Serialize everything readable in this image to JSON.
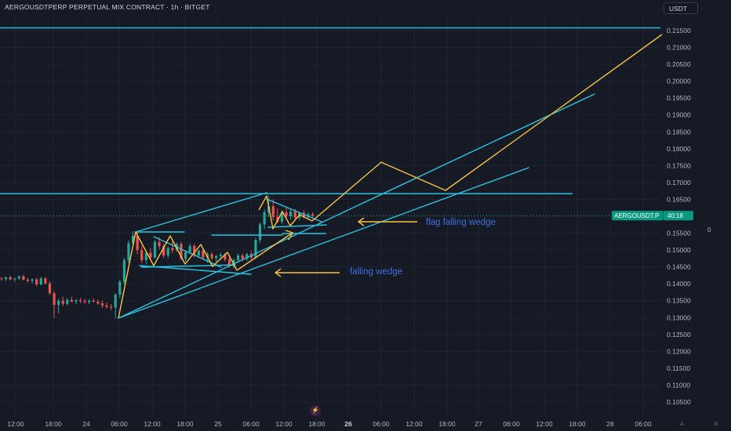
{
  "header": {
    "title": "AERGOUSDTPERP PERPETUAL MIX CONTRACT · 1h · BITGET",
    "currency": "USDT"
  },
  "price_tag": {
    "symbol": "AERGOUSDT.P",
    "countdown": "40:18",
    "color": "#089981"
  },
  "right_scale_extra": "0",
  "icons": {
    "bolt": "lightning-bolt-icon",
    "bolt_glyph": "⚡",
    "corner_a": "A",
    "corner_b": "B"
  },
  "colors": {
    "background": "#161a25",
    "grid": "#1f2330",
    "text": "#b2b5be",
    "cyan": "#29c4e0",
    "orange": "#f5c242",
    "annotation_text": "#3d6fe0",
    "up": "#26a69a",
    "down": "#ef5350"
  },
  "chart_data": {
    "type": "candlestick",
    "title": "AERGOUSDTPERP PERPETUAL MIX CONTRACT · 1h · BITGET",
    "ylim": [
      0.1035,
      0.2175
    ],
    "y_ticks": [
      "0.21500",
      "0.21000",
      "0.20500",
      "0.20000",
      "0.19500",
      "0.19000",
      "0.18500",
      "0.18000",
      "0.17500",
      "0.17000",
      "0.16500",
      "0.16000",
      "0.15500",
      "0.15000",
      "0.14500",
      "0.14000",
      "0.13500",
      "0.13000",
      "0.12500",
      "0.12000",
      "0.11500",
      "0.11000",
      "0.10500"
    ],
    "x_ticks": [
      "12:00",
      "18:00",
      "24",
      "06:00",
      "12:00",
      "18:00",
      "25",
      "06:00",
      "12:00",
      "18:00",
      "26",
      "06:00",
      "12:00",
      "18:00",
      "27",
      "06:00",
      "12:00",
      "18:00",
      "28",
      "06:00"
    ],
    "x_ticks_bold": [
      "26"
    ],
    "grid": true,
    "last_price": 0.1602,
    "horizontal_lines": [
      0.2158,
      0.1667
    ],
    "candles": [
      {
        "o": 0.1416,
        "h": 0.1421,
        "l": 0.1409,
        "c": 0.1414
      },
      {
        "o": 0.1414,
        "h": 0.1422,
        "l": 0.1408,
        "c": 0.1419
      },
      {
        "o": 0.1419,
        "h": 0.1424,
        "l": 0.141,
        "c": 0.1413
      },
      {
        "o": 0.1413,
        "h": 0.1418,
        "l": 0.1405,
        "c": 0.1416
      },
      {
        "o": 0.1416,
        "h": 0.1425,
        "l": 0.1412,
        "c": 0.1422
      },
      {
        "o": 0.1422,
        "h": 0.1426,
        "l": 0.141,
        "c": 0.1412
      },
      {
        "o": 0.1412,
        "h": 0.1418,
        "l": 0.1404,
        "c": 0.1409
      },
      {
        "o": 0.1409,
        "h": 0.1416,
        "l": 0.1401,
        "c": 0.1413
      },
      {
        "o": 0.1413,
        "h": 0.1418,
        "l": 0.1394,
        "c": 0.1398
      },
      {
        "o": 0.1398,
        "h": 0.142,
        "l": 0.1396,
        "c": 0.1416
      },
      {
        "o": 0.1416,
        "h": 0.142,
        "l": 0.1398,
        "c": 0.1401
      },
      {
        "o": 0.1401,
        "h": 0.1408,
        "l": 0.1367,
        "c": 0.1372
      },
      {
        "o": 0.1372,
        "h": 0.1378,
        "l": 0.1298,
        "c": 0.1338
      },
      {
        "o": 0.1338,
        "h": 0.1356,
        "l": 0.1312,
        "c": 0.135
      },
      {
        "o": 0.135,
        "h": 0.1362,
        "l": 0.1334,
        "c": 0.1341
      },
      {
        "o": 0.1341,
        "h": 0.1358,
        "l": 0.1336,
        "c": 0.1352
      },
      {
        "o": 0.1352,
        "h": 0.1362,
        "l": 0.1346,
        "c": 0.1347
      },
      {
        "o": 0.1347,
        "h": 0.1355,
        "l": 0.134,
        "c": 0.1351
      },
      {
        "o": 0.1351,
        "h": 0.1358,
        "l": 0.1343,
        "c": 0.1349
      },
      {
        "o": 0.1349,
        "h": 0.1356,
        "l": 0.1341,
        "c": 0.1346
      },
      {
        "o": 0.1346,
        "h": 0.1354,
        "l": 0.134,
        "c": 0.135
      },
      {
        "o": 0.135,
        "h": 0.1357,
        "l": 0.1344,
        "c": 0.1347
      },
      {
        "o": 0.1347,
        "h": 0.1353,
        "l": 0.1338,
        "c": 0.1342
      },
      {
        "o": 0.1342,
        "h": 0.135,
        "l": 0.1328,
        "c": 0.1336
      },
      {
        "o": 0.1336,
        "h": 0.1344,
        "l": 0.1327,
        "c": 0.1332
      },
      {
        "o": 0.1332,
        "h": 0.134,
        "l": 0.1322,
        "c": 0.133
      },
      {
        "o": 0.133,
        "h": 0.1372,
        "l": 0.1298,
        "c": 0.1368
      },
      {
        "o": 0.1368,
        "h": 0.1412,
        "l": 0.1358,
        "c": 0.1406
      },
      {
        "o": 0.1406,
        "h": 0.1478,
        "l": 0.1398,
        "c": 0.147
      },
      {
        "o": 0.147,
        "h": 0.1528,
        "l": 0.1462,
        "c": 0.152
      },
      {
        "o": 0.152,
        "h": 0.1556,
        "l": 0.1508,
        "c": 0.1542
      },
      {
        "o": 0.1542,
        "h": 0.1552,
        "l": 0.1488,
        "c": 0.15
      },
      {
        "o": 0.15,
        "h": 0.1512,
        "l": 0.1462,
        "c": 0.147
      },
      {
        "o": 0.147,
        "h": 0.1498,
        "l": 0.1458,
        "c": 0.1492
      },
      {
        "o": 0.1492,
        "h": 0.1506,
        "l": 0.147,
        "c": 0.1478
      },
      {
        "o": 0.1478,
        "h": 0.153,
        "l": 0.1474,
        "c": 0.1524
      },
      {
        "o": 0.1524,
        "h": 0.1538,
        "l": 0.1502,
        "c": 0.1512
      },
      {
        "o": 0.1512,
        "h": 0.1518,
        "l": 0.1476,
        "c": 0.1484
      },
      {
        "o": 0.1484,
        "h": 0.1512,
        "l": 0.1476,
        "c": 0.1506
      },
      {
        "o": 0.1506,
        "h": 0.1526,
        "l": 0.149,
        "c": 0.15
      },
      {
        "o": 0.15,
        "h": 0.1522,
        "l": 0.1496,
        "c": 0.1518
      },
      {
        "o": 0.1518,
        "h": 0.1524,
        "l": 0.147,
        "c": 0.1474
      },
      {
        "o": 0.1474,
        "h": 0.1498,
        "l": 0.1466,
        "c": 0.1494
      },
      {
        "o": 0.1494,
        "h": 0.152,
        "l": 0.1488,
        "c": 0.1512
      },
      {
        "o": 0.1512,
        "h": 0.1518,
        "l": 0.1478,
        "c": 0.1484
      },
      {
        "o": 0.1484,
        "h": 0.1502,
        "l": 0.1476,
        "c": 0.1498
      },
      {
        "o": 0.1498,
        "h": 0.1504,
        "l": 0.1472,
        "c": 0.1478
      },
      {
        "o": 0.1478,
        "h": 0.1494,
        "l": 0.1462,
        "c": 0.1488
      },
      {
        "o": 0.1488,
        "h": 0.1494,
        "l": 0.147,
        "c": 0.1476
      },
      {
        "o": 0.1476,
        "h": 0.1486,
        "l": 0.1462,
        "c": 0.1482
      },
      {
        "o": 0.1482,
        "h": 0.1492,
        "l": 0.147,
        "c": 0.1486
      },
      {
        "o": 0.1486,
        "h": 0.1492,
        "l": 0.1466,
        "c": 0.1472
      },
      {
        "o": 0.1472,
        "h": 0.148,
        "l": 0.1448,
        "c": 0.1452
      },
      {
        "o": 0.1452,
        "h": 0.1476,
        "l": 0.1446,
        "c": 0.147
      },
      {
        "o": 0.147,
        "h": 0.149,
        "l": 0.1464,
        "c": 0.1484
      },
      {
        "o": 0.1484,
        "h": 0.149,
        "l": 0.1468,
        "c": 0.1474
      },
      {
        "o": 0.1474,
        "h": 0.1492,
        "l": 0.1468,
        "c": 0.1488
      },
      {
        "o": 0.1488,
        "h": 0.1498,
        "l": 0.1472,
        "c": 0.1478
      },
      {
        "o": 0.1478,
        "h": 0.1536,
        "l": 0.1474,
        "c": 0.153
      },
      {
        "o": 0.153,
        "h": 0.1582,
        "l": 0.152,
        "c": 0.1576
      },
      {
        "o": 0.1576,
        "h": 0.162,
        "l": 0.1562,
        "c": 0.1612
      },
      {
        "o": 0.1612,
        "h": 0.166,
        "l": 0.1598,
        "c": 0.163
      },
      {
        "o": 0.163,
        "h": 0.165,
        "l": 0.1588,
        "c": 0.1598
      },
      {
        "o": 0.1598,
        "h": 0.1624,
        "l": 0.158,
        "c": 0.1584
      },
      {
        "o": 0.1584,
        "h": 0.1618,
        "l": 0.1578,
        "c": 0.1612
      },
      {
        "o": 0.1612,
        "h": 0.1626,
        "l": 0.1592,
        "c": 0.16
      },
      {
        "o": 0.16,
        "h": 0.162,
        "l": 0.159,
        "c": 0.1614
      },
      {
        "o": 0.1614,
        "h": 0.1622,
        "l": 0.1592,
        "c": 0.1596
      },
      {
        "o": 0.1596,
        "h": 0.1614,
        "l": 0.1588,
        "c": 0.161
      },
      {
        "o": 0.161,
        "h": 0.1618,
        "l": 0.1594,
        "c": 0.1598
      },
      {
        "o": 0.1598,
        "h": 0.1612,
        "l": 0.159,
        "c": 0.1606
      },
      {
        "o": 0.1606,
        "h": 0.1612,
        "l": 0.1592,
        "c": 0.1602
      }
    ],
    "annotations": [
      {
        "text": "flag falling wedge"
      },
      {
        "text": "falling wedge"
      }
    ]
  }
}
